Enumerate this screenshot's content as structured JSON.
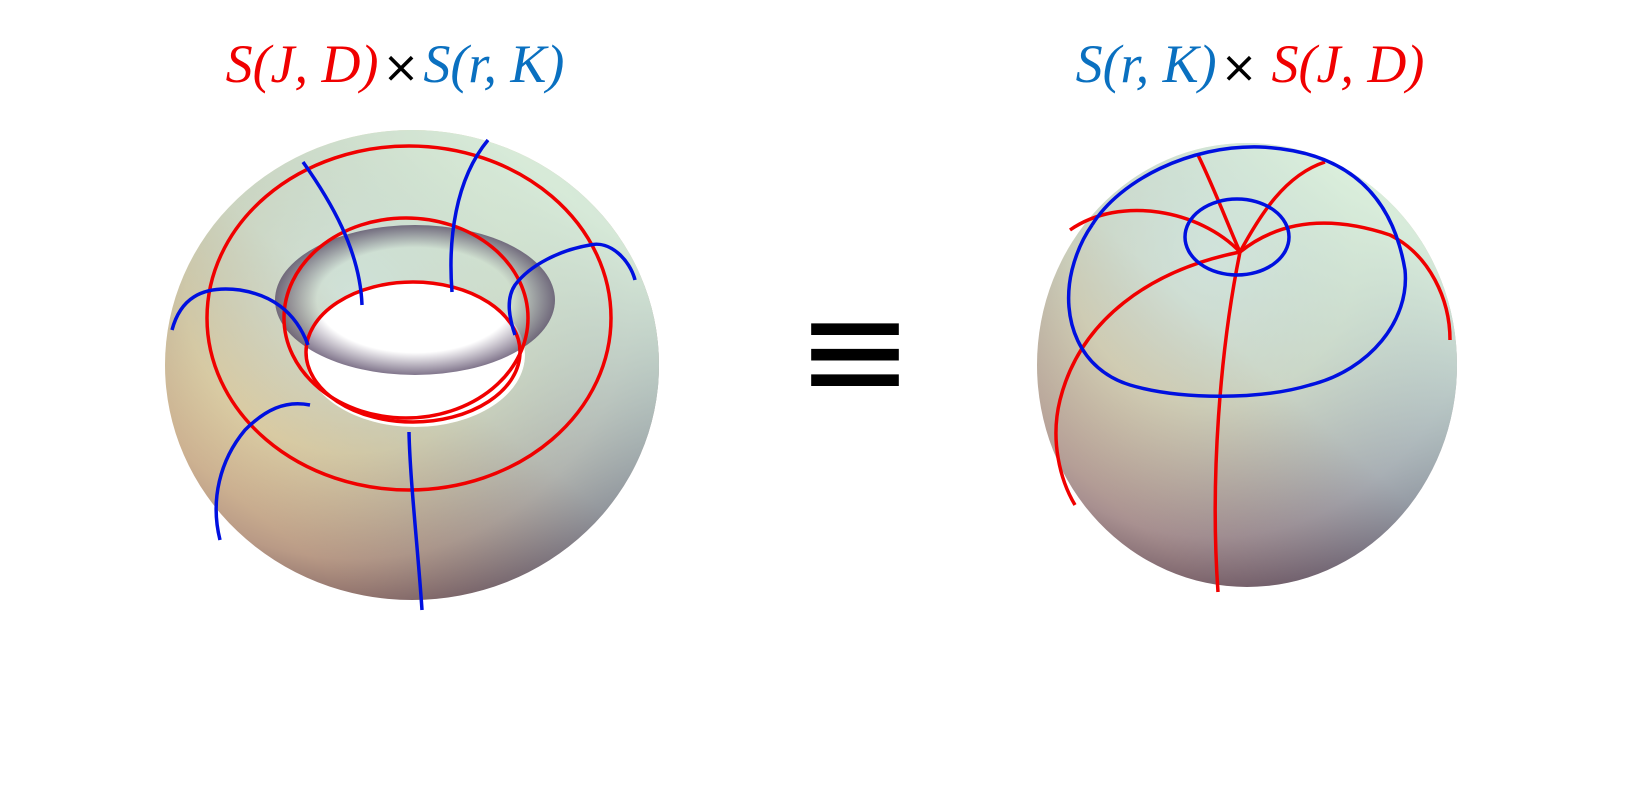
{
  "left": {
    "formula": [
      "S(J, D)",
      "×",
      "S(r, K)"
    ]
  },
  "middle": {
    "symbol": "≡"
  },
  "right": {
    "formula": [
      "S(r, K)",
      "×",
      "S(J, D)"
    ]
  }
}
